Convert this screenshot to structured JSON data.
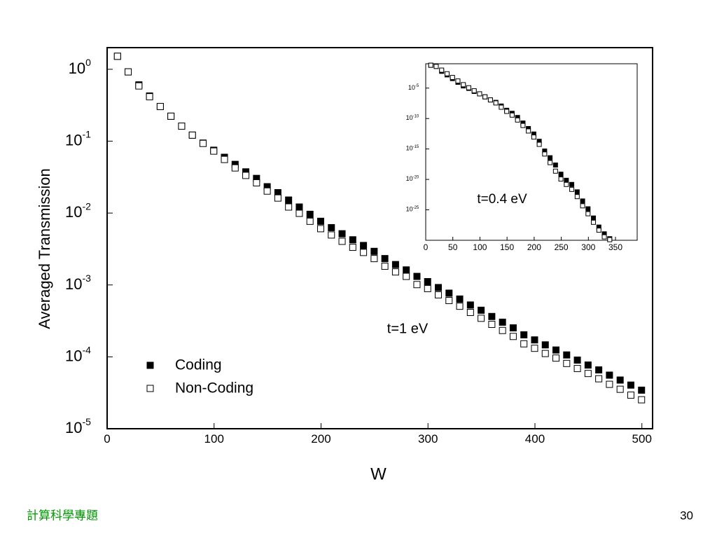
{
  "chart_data": [
    {
      "type": "scatter",
      "xlabel": "W",
      "ylabel": "Averaged Transmission",
      "log_y": true,
      "legend": "lower left",
      "annotations": [
        "t=1 eV"
      ],
      "xlim": [
        0,
        510
      ],
      "xticks": [
        0,
        100,
        200,
        300,
        400,
        500
      ],
      "ylim": [
        1e-05,
        2
      ],
      "yticks": [
        {
          "value": 1,
          "label": "10",
          "exponent": "0"
        },
        {
          "value": 0.1,
          "label": "10",
          "exponent": "-1"
        },
        {
          "value": 0.01,
          "label": "10",
          "exponent": "-2"
        },
        {
          "value": 0.001,
          "label": "10",
          "exponent": "-3"
        },
        {
          "value": 0.0001,
          "label": "10",
          "exponent": "-4"
        },
        {
          "value": 1e-05,
          "label": "10",
          "exponent": "-5"
        }
      ],
      "x": [
        10,
        20,
        30,
        40,
        50,
        60,
        70,
        80,
        90,
        100,
        110,
        120,
        130,
        140,
        150,
        160,
        170,
        180,
        190,
        200,
        210,
        220,
        230,
        240,
        250,
        260,
        270,
        280,
        290,
        300,
        310,
        320,
        330,
        340,
        350,
        360,
        370,
        380,
        390,
        400,
        410,
        420,
        430,
        440,
        450,
        460,
        470,
        480,
        490,
        500
      ],
      "series": [
        {
          "name": "Coding",
          "color": "#000000",
          "fill": "#000000",
          "values": [
            1.5,
            0.91,
            0.6,
            0.42,
            0.3,
            0.22,
            0.16,
            0.12,
            0.093,
            0.074,
            0.059,
            0.047,
            0.037,
            0.03,
            0.023,
            0.019,
            0.015,
            0.012,
            0.0095,
            0.0076,
            0.0062,
            0.0051,
            0.0042,
            0.0035,
            0.0029,
            0.0023,
            0.0019,
            0.0016,
            0.0013,
            0.0011,
            0.00091,
            0.00076,
            0.00063,
            0.00052,
            0.00044,
            0.00036,
            0.0003,
            0.00025,
            0.0002,
            0.00017,
            0.000145,
            0.000123,
            0.000105,
            8.9e-05,
            7.6e-05,
            6.5e-05,
            5.5e-05,
            4.7e-05,
            4e-05,
            3.4e-05
          ]
        },
        {
          "name": "Non-Coding",
          "color": "#000000",
          "fill": "#ffffff",
          "values": [
            1.5,
            0.91,
            0.58,
            0.41,
            0.3,
            0.22,
            0.16,
            0.12,
            0.092,
            0.072,
            0.055,
            0.042,
            0.033,
            0.026,
            0.02,
            0.016,
            0.012,
            0.0098,
            0.0076,
            0.006,
            0.0049,
            0.004,
            0.0033,
            0.0028,
            0.0023,
            0.0018,
            0.0015,
            0.0013,
            0.001,
            0.00088,
            0.00072,
            0.0006,
            0.0005,
            0.00041,
            0.00034,
            0.00028,
            0.00023,
            0.00019,
            0.00015,
            0.00013,
            0.00011,
            9.5e-05,
            8e-05,
            6.8e-05,
            5.8e-05,
            4.9e-05,
            4.1e-05,
            3.5e-05,
            2.9e-05,
            2.5e-05
          ]
        }
      ]
    },
    {
      "type": "scatter",
      "log_y": true,
      "annotations": [
        "t=0.4 eV"
      ],
      "xlim": [
        0,
        390
      ],
      "xticks": [
        0,
        50,
        100,
        150,
        200,
        250,
        300,
        350
      ],
      "ylim": [
        1e-30,
        0.1
      ],
      "yticks": [
        {
          "value": 1e-05,
          "label": "10",
          "exponent": "-5"
        },
        {
          "value": 1e-10,
          "label": "10",
          "exponent": "-10"
        },
        {
          "value": 1e-15,
          "label": "10",
          "exponent": "-15"
        },
        {
          "value": 1e-20,
          "label": "10",
          "exponent": "-20"
        },
        {
          "value": 1e-25,
          "label": "10",
          "exponent": "-25"
        }
      ],
      "x": [
        10,
        20,
        30,
        40,
        50,
        60,
        70,
        80,
        90,
        100,
        110,
        120,
        130,
        140,
        150,
        160,
        170,
        180,
        190,
        200,
        210,
        220,
        230,
        240,
        250,
        260,
        270,
        280,
        290,
        300,
        310,
        320,
        330,
        340
      ],
      "series": [
        {
          "color": "#000000",
          "fill": "#000000",
          "values": [
            0.05,
            0.032,
            0.005,
            0.0013,
            0.00032,
            7.9e-05,
            2e-05,
            7.9e-06,
            2.5e-06,
            1e-06,
            3.2e-07,
            1e-07,
            4e-08,
            1e-08,
            2e-09,
            6.3e-10,
            1.3e-10,
            1.6e-11,
            2e-12,
            2.5e-13,
            1.6e-14,
            4e-16,
            3.2e-17,
            2e-18,
            6.3e-20,
            6.3e-21,
            1.3e-21,
            7.9e-23,
            2.5e-24,
            1.3e-25,
            4e-27,
            1.3e-28,
            1e-29,
            1.6e-30
          ]
        },
        {
          "color": "#000000",
          "fill": "#ffffff",
          "values": [
            0.05,
            0.032,
            0.0079,
            0.002,
            0.0005,
            0.00013,
            3.2e-05,
            1e-05,
            3.2e-06,
            1e-06,
            3.2e-07,
            1e-07,
            3.2e-08,
            6.3e-09,
            1.3e-09,
            3.2e-10,
            5e-11,
            6.3e-12,
            7.9e-13,
            7.9e-14,
            5e-15,
            1.3e-16,
            5e-18,
            2e-19,
            1e-20,
            1.3e-21,
            2e-22,
            1.3e-23,
            4e-25,
            2e-26,
            7.9e-28,
            4e-29,
            3.2e-30,
            1.1e-30
          ]
        }
      ]
    }
  ],
  "footer": {
    "title": "計算科學專題",
    "page": 30
  }
}
